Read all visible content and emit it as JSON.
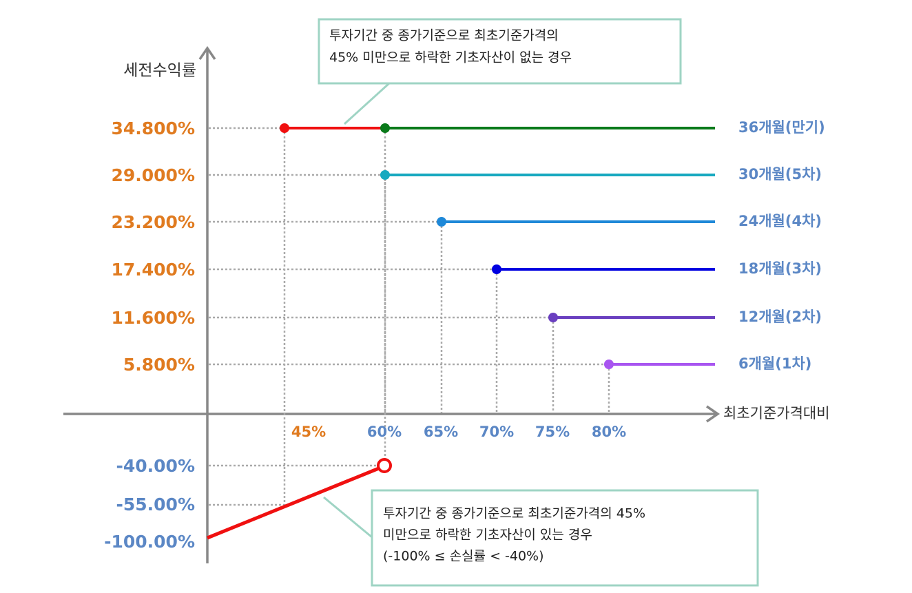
{
  "y_axis": {
    "title": "세전수익률",
    "labels": [
      "34.800%",
      "29.000%",
      "23.200%",
      "17.400%",
      "11.600%",
      "5.800%"
    ],
    "loss_labels": [
      "-40.00%",
      "-55.00%",
      "-100.00%"
    ]
  },
  "x_axis": {
    "title": "최초기준가격대비",
    "labels": [
      "45%",
      "60%",
      "65%",
      "70%",
      "75%",
      "80%"
    ]
  },
  "series": [
    {
      "label": "36개월(만기)"
    },
    {
      "label": "30개월(5차)"
    },
    {
      "label": "24개월(4차)"
    },
    {
      "label": "18개월(3차)"
    },
    {
      "label": "12개월(2차)"
    },
    {
      "label": "6개월(1차)"
    }
  ],
  "callouts": [
    {
      "lines": [
        "투자기간 중 종가기준으로 최초기준가격의",
        "45% 미만으로 하락한 기초자산이 없는 경우"
      ]
    },
    {
      "lines": [
        "투자기간 중 종가기준으로 최초기준가격의 45%",
        "미만으로 하락한 기초자산이 있는 경우",
        "(-100% ≤ 손실률 < -40%)"
      ]
    }
  ]
}
